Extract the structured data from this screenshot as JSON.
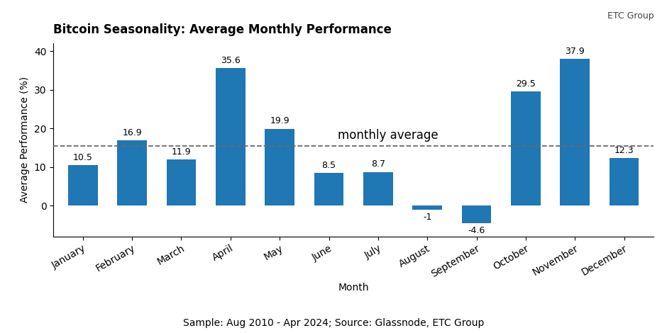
{
  "chart_data": {
    "type": "bar",
    "title": "Bitcoin Seasonality: Average Monthly Performance",
    "subtitle": "Sample: Aug 2010 - Apr 2024; Source: Glassnode, ETC Group",
    "xlabel": "Month",
    "ylabel": "Average Performance (%)",
    "categories": [
      "January",
      "February",
      "March",
      "April",
      "May",
      "June",
      "July",
      "August",
      "September",
      "October",
      "November",
      "December"
    ],
    "values": [
      10.5,
      16.9,
      11.9,
      35.6,
      19.9,
      8.5,
      8.7,
      -1,
      -4.6,
      29.5,
      37.9,
      12.3
    ],
    "data_labels": true,
    "ylim": [
      -8,
      42
    ],
    "yticks": [
      0,
      10,
      20,
      30,
      40
    ],
    "grid": false,
    "reference_lines": [
      {
        "label": "monthly average",
        "value": 15.5,
        "line_style": "dashed"
      }
    ],
    "annotations": [
      {
        "text": "ETC Group"
      }
    ]
  }
}
